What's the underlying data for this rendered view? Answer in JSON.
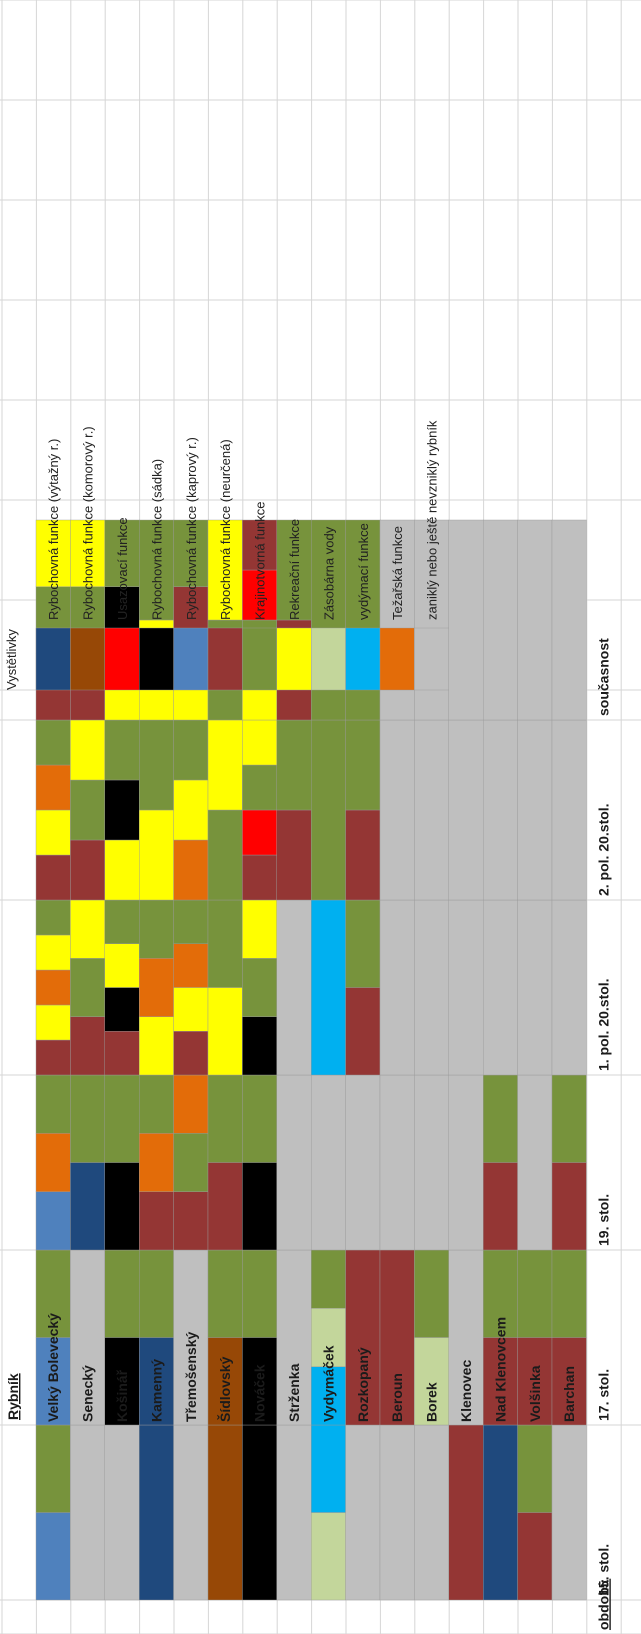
{
  "chart_data": {
    "type": "heatmap",
    "title": "",
    "row_header": "Rybník",
    "period_header": "období:",
    "legend_title": "Vystětlivky",
    "periods": [
      "15. stol.",
      "17. stol.",
      "19. stol.",
      "1. pol. 20.stol.",
      "2. pol. 20.stol.",
      "současnost"
    ],
    "ponds": [
      "Velký Bolevecký",
      "Senecký",
      "Košinář",
      "Kamenný",
      "Třemošenský",
      "Šídlovský",
      "Nováček",
      "Strženka",
      "Vydymáček",
      "Rozkopaný",
      "Beroun",
      "Borek",
      "Klenovec",
      "Nad Klenovcem",
      "Volšinka",
      "Barchan"
    ],
    "legend": [
      {
        "key": "V",
        "label": "Rybochovná funkce (výtažný r.)",
        "color": "#1f497d"
      },
      {
        "key": "K",
        "label": "Rybochovná funkce (komorový r.)",
        "color": "#974806"
      },
      {
        "key": "U",
        "label": "Usazovací funkce",
        "color": "#ff0000"
      },
      {
        "key": "S",
        "label": "Rybochovná funkce (sádka)",
        "color": "#000000"
      },
      {
        "key": "P",
        "label": "Rybochovná funkce (kaprový r.)",
        "color": "#4f81bd"
      },
      {
        "key": "N",
        "label": "Rybochovná funkce (neurčená)",
        "color": "#943634"
      },
      {
        "key": "G",
        "label": "Krajinotvorná funkce",
        "color": "#77933c"
      },
      {
        "key": "Y",
        "label": "Rekreační funkce",
        "color": "#ffff00"
      },
      {
        "key": "L",
        "label": "Zásobárna vody",
        "color": "#c3d69b"
      },
      {
        "key": "C",
        "label": "vydýmací funkce",
        "color": "#00b0f0"
      },
      {
        "key": "O",
        "label": "Težařská funkce",
        "color": "#e36c09"
      },
      {
        "key": "X",
        "label": "zaniklý nebo ještě nevzniklý rybník",
        "color": "#bfbfbf"
      }
    ],
    "cells": [
      [
        [
          "P",
          "G"
        ],
        [
          "P",
          "G"
        ],
        [
          "P",
          "O",
          "G"
        ],
        [
          "N",
          "Y",
          "O",
          "Y",
          "G"
        ],
        [
          "N",
          "Y",
          "O",
          "G"
        ],
        [
          "N",
          "G",
          "Y"
        ]
      ],
      [
        [
          "X"
        ],
        [
          "X"
        ],
        [
          "V",
          "G"
        ],
        [
          "N",
          "G",
          "Y"
        ],
        [
          "N",
          "G",
          "Y"
        ],
        [
          "N",
          "G",
          "Y"
        ]
      ],
      [
        [
          "X"
        ],
        [
          "S",
          "G"
        ],
        [
          "S",
          "G"
        ],
        [
          "N",
          "S",
          "Y",
          "G"
        ],
        [
          "Y",
          "S",
          "G"
        ],
        [
          "Y",
          "S",
          "G"
        ]
      ],
      [
        [
          "V"
        ],
        [
          "V",
          "G"
        ],
        [
          "N",
          "O",
          "G"
        ],
        [
          "Y",
          "O",
          "G"
        ],
        [
          "Y",
          "G"
        ],
        [
          "Y",
          "G"
        ]
      ],
      [
        [
          "X"
        ],
        [
          "X"
        ],
        [
          "N",
          "G",
          "O"
        ],
        [
          "N",
          "Y",
          "O",
          "G"
        ],
        [
          "O",
          "Y",
          "G"
        ],
        [
          "Y",
          "N",
          "G"
        ]
      ],
      [
        [
          "K"
        ],
        [
          "K",
          "G"
        ],
        [
          "N",
          "G"
        ],
        [
          "Y",
          "G"
        ],
        [
          "G",
          "Y"
        ],
        [
          "G",
          "Y"
        ]
      ],
      [
        [
          "S"
        ],
        [
          "S",
          "G"
        ],
        [
          "S",
          "G"
        ],
        [
          "S",
          "G",
          "Y"
        ],
        [
          "N",
          "U",
          "G",
          "Y"
        ],
        [
          "Y",
          "G",
          "U",
          "N"
        ]
      ],
      [
        [
          "X"
        ],
        [
          "X"
        ],
        [
          "X"
        ],
        [
          "X"
        ],
        [
          "N",
          "G"
        ],
        [
          "N",
          "G"
        ]
      ],
      [
        [
          "L",
          "C"
        ],
        [
          "C",
          "L",
          "G"
        ],
        [
          "X"
        ],
        [
          "C"
        ],
        [
          "G"
        ],
        [
          "G"
        ]
      ],
      [
        [
          "X"
        ],
        [
          "N"
        ],
        [
          "X"
        ],
        [
          "N",
          "G"
        ],
        [
          "N",
          "G"
        ],
        [
          "G"
        ]
      ],
      [
        [
          "X"
        ],
        [
          "N"
        ],
        [
          "X"
        ],
        [
          "X"
        ],
        [
          "X"
        ],
        [
          "X"
        ]
      ],
      [
        [
          "X"
        ],
        [
          "L",
          "G"
        ],
        [
          "X"
        ],
        [
          "X"
        ],
        [
          "X"
        ],
        [
          "X"
        ]
      ],
      [
        [
          "N"
        ],
        [
          "X"
        ],
        [
          "X"
        ],
        [
          "X"
        ],
        [
          "X"
        ],
        [
          "X"
        ]
      ],
      [
        [
          "V"
        ],
        [
          "N",
          "G"
        ],
        [
          "N",
          "G"
        ],
        [
          "X"
        ],
        [
          "X"
        ],
        [
          "X"
        ]
      ],
      [
        [
          "N",
          "G"
        ],
        [
          "N",
          "G"
        ],
        [
          "X"
        ],
        [
          "X"
        ],
        [
          "X"
        ],
        [
          "X"
        ]
      ],
      [
        [
          "X"
        ],
        [
          "N",
          "G"
        ],
        [
          "N",
          "G"
        ],
        [
          "X"
        ],
        [
          "X"
        ],
        [
          "X"
        ]
      ]
    ]
  }
}
